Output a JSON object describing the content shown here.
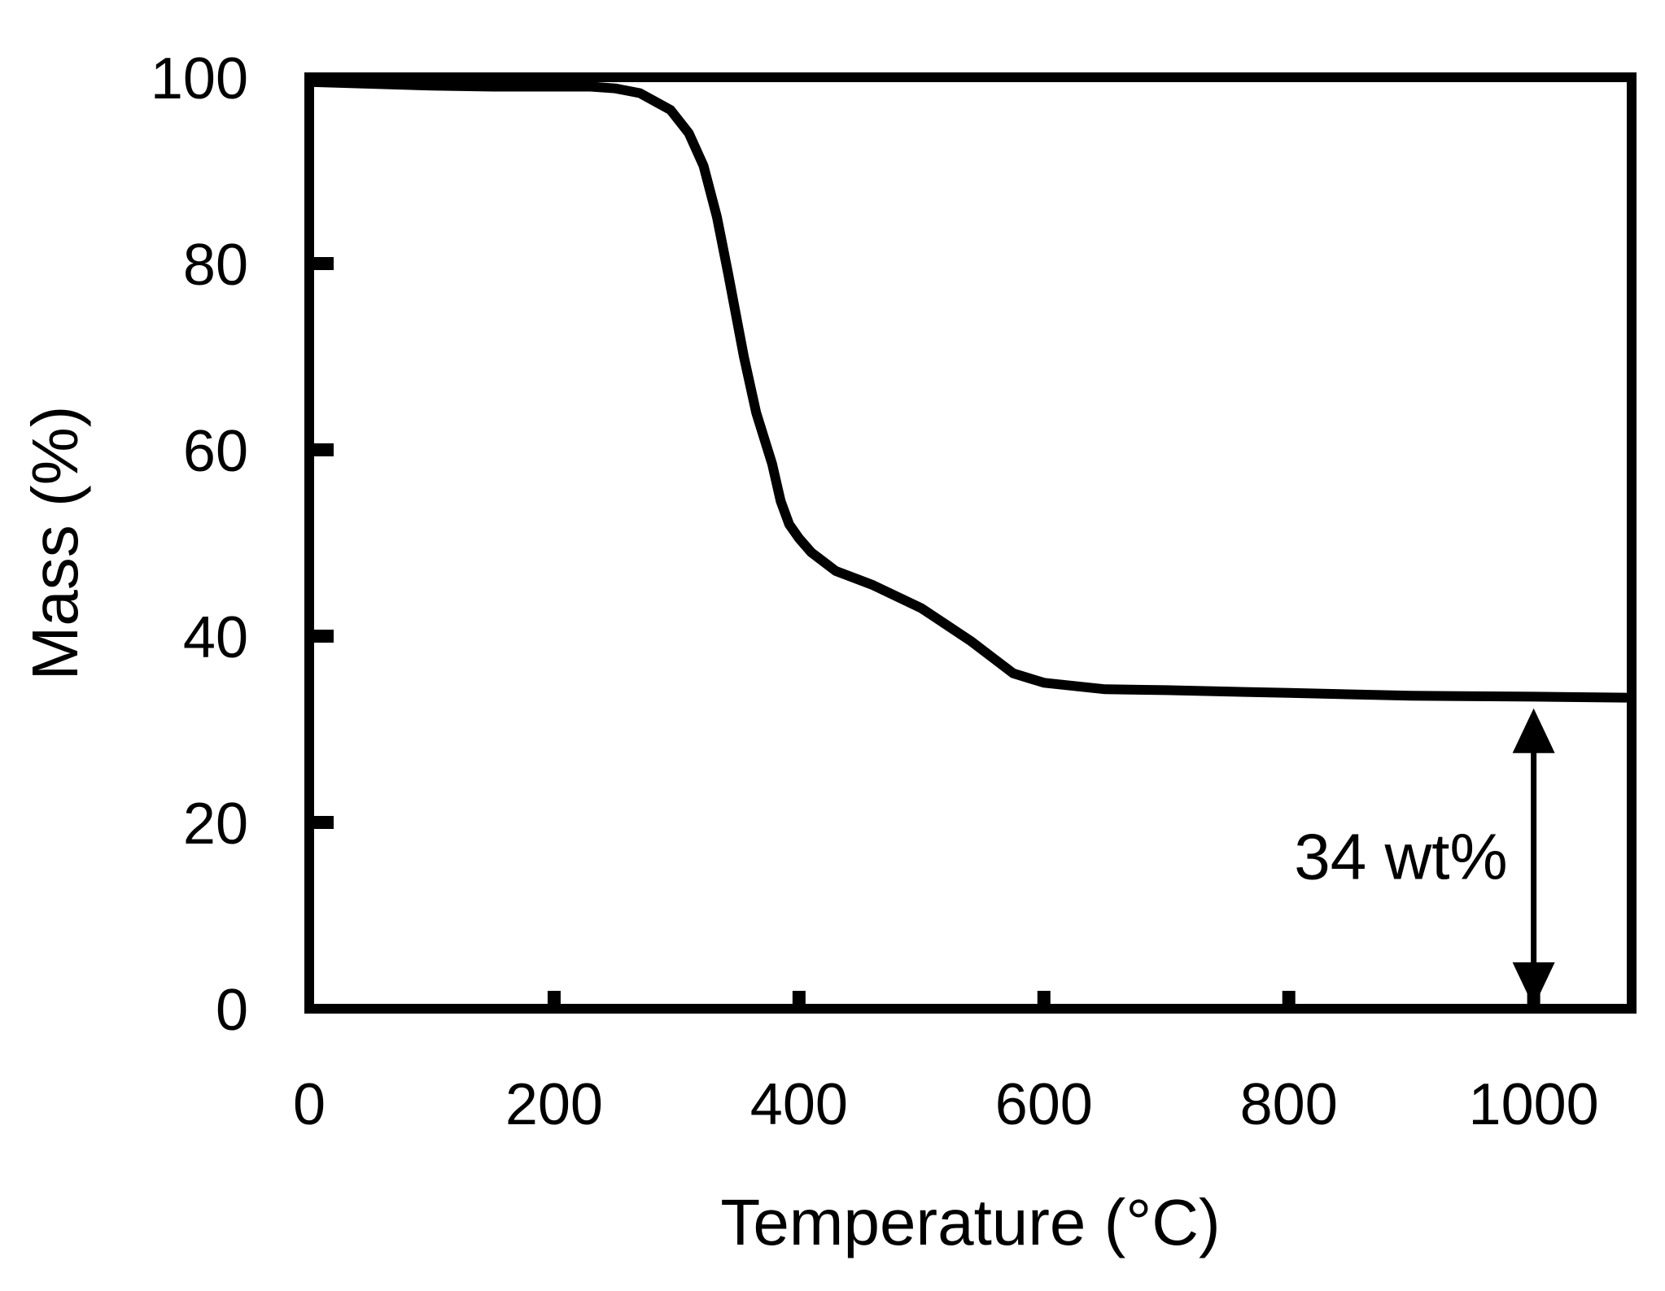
{
  "chart_data": {
    "type": "line",
    "xlabel": "Temperature  (°C)",
    "ylabel": "Mass  (%)",
    "xlim": [
      0,
      1080
    ],
    "ylim": [
      0,
      100
    ],
    "xticks": [
      0,
      200,
      400,
      600,
      800,
      1000
    ],
    "yticks": [
      0,
      20,
      40,
      60,
      80,
      100
    ],
    "grid": false,
    "series": [
      {
        "x": [
          0,
          50,
          100,
          150,
          200,
          230,
          250,
          270,
          295,
          310,
          322,
          333,
          342,
          355,
          365,
          378,
          385,
          392,
          400,
          410,
          430,
          460,
          500,
          540,
          560,
          575,
          600,
          650,
          700,
          800,
          900,
          1000,
          1075
        ],
        "y": [
          99.5,
          99.3,
          99.1,
          99.0,
          99.0,
          99.0,
          98.8,
          98.3,
          96.5,
          94.0,
          90.5,
          85.0,
          79.0,
          70.0,
          64.0,
          58.5,
          54.5,
          52.0,
          50.5,
          49.0,
          47.0,
          45.5,
          43.0,
          39.5,
          37.5,
          36.0,
          35.0,
          34.3,
          34.2,
          33.9,
          33.6,
          33.5,
          33.4
        ]
      }
    ],
    "annotations": [
      {
        "text": "34 wt%",
        "x": 1000,
        "y_from": 0,
        "y_to": 34
      }
    ]
  }
}
